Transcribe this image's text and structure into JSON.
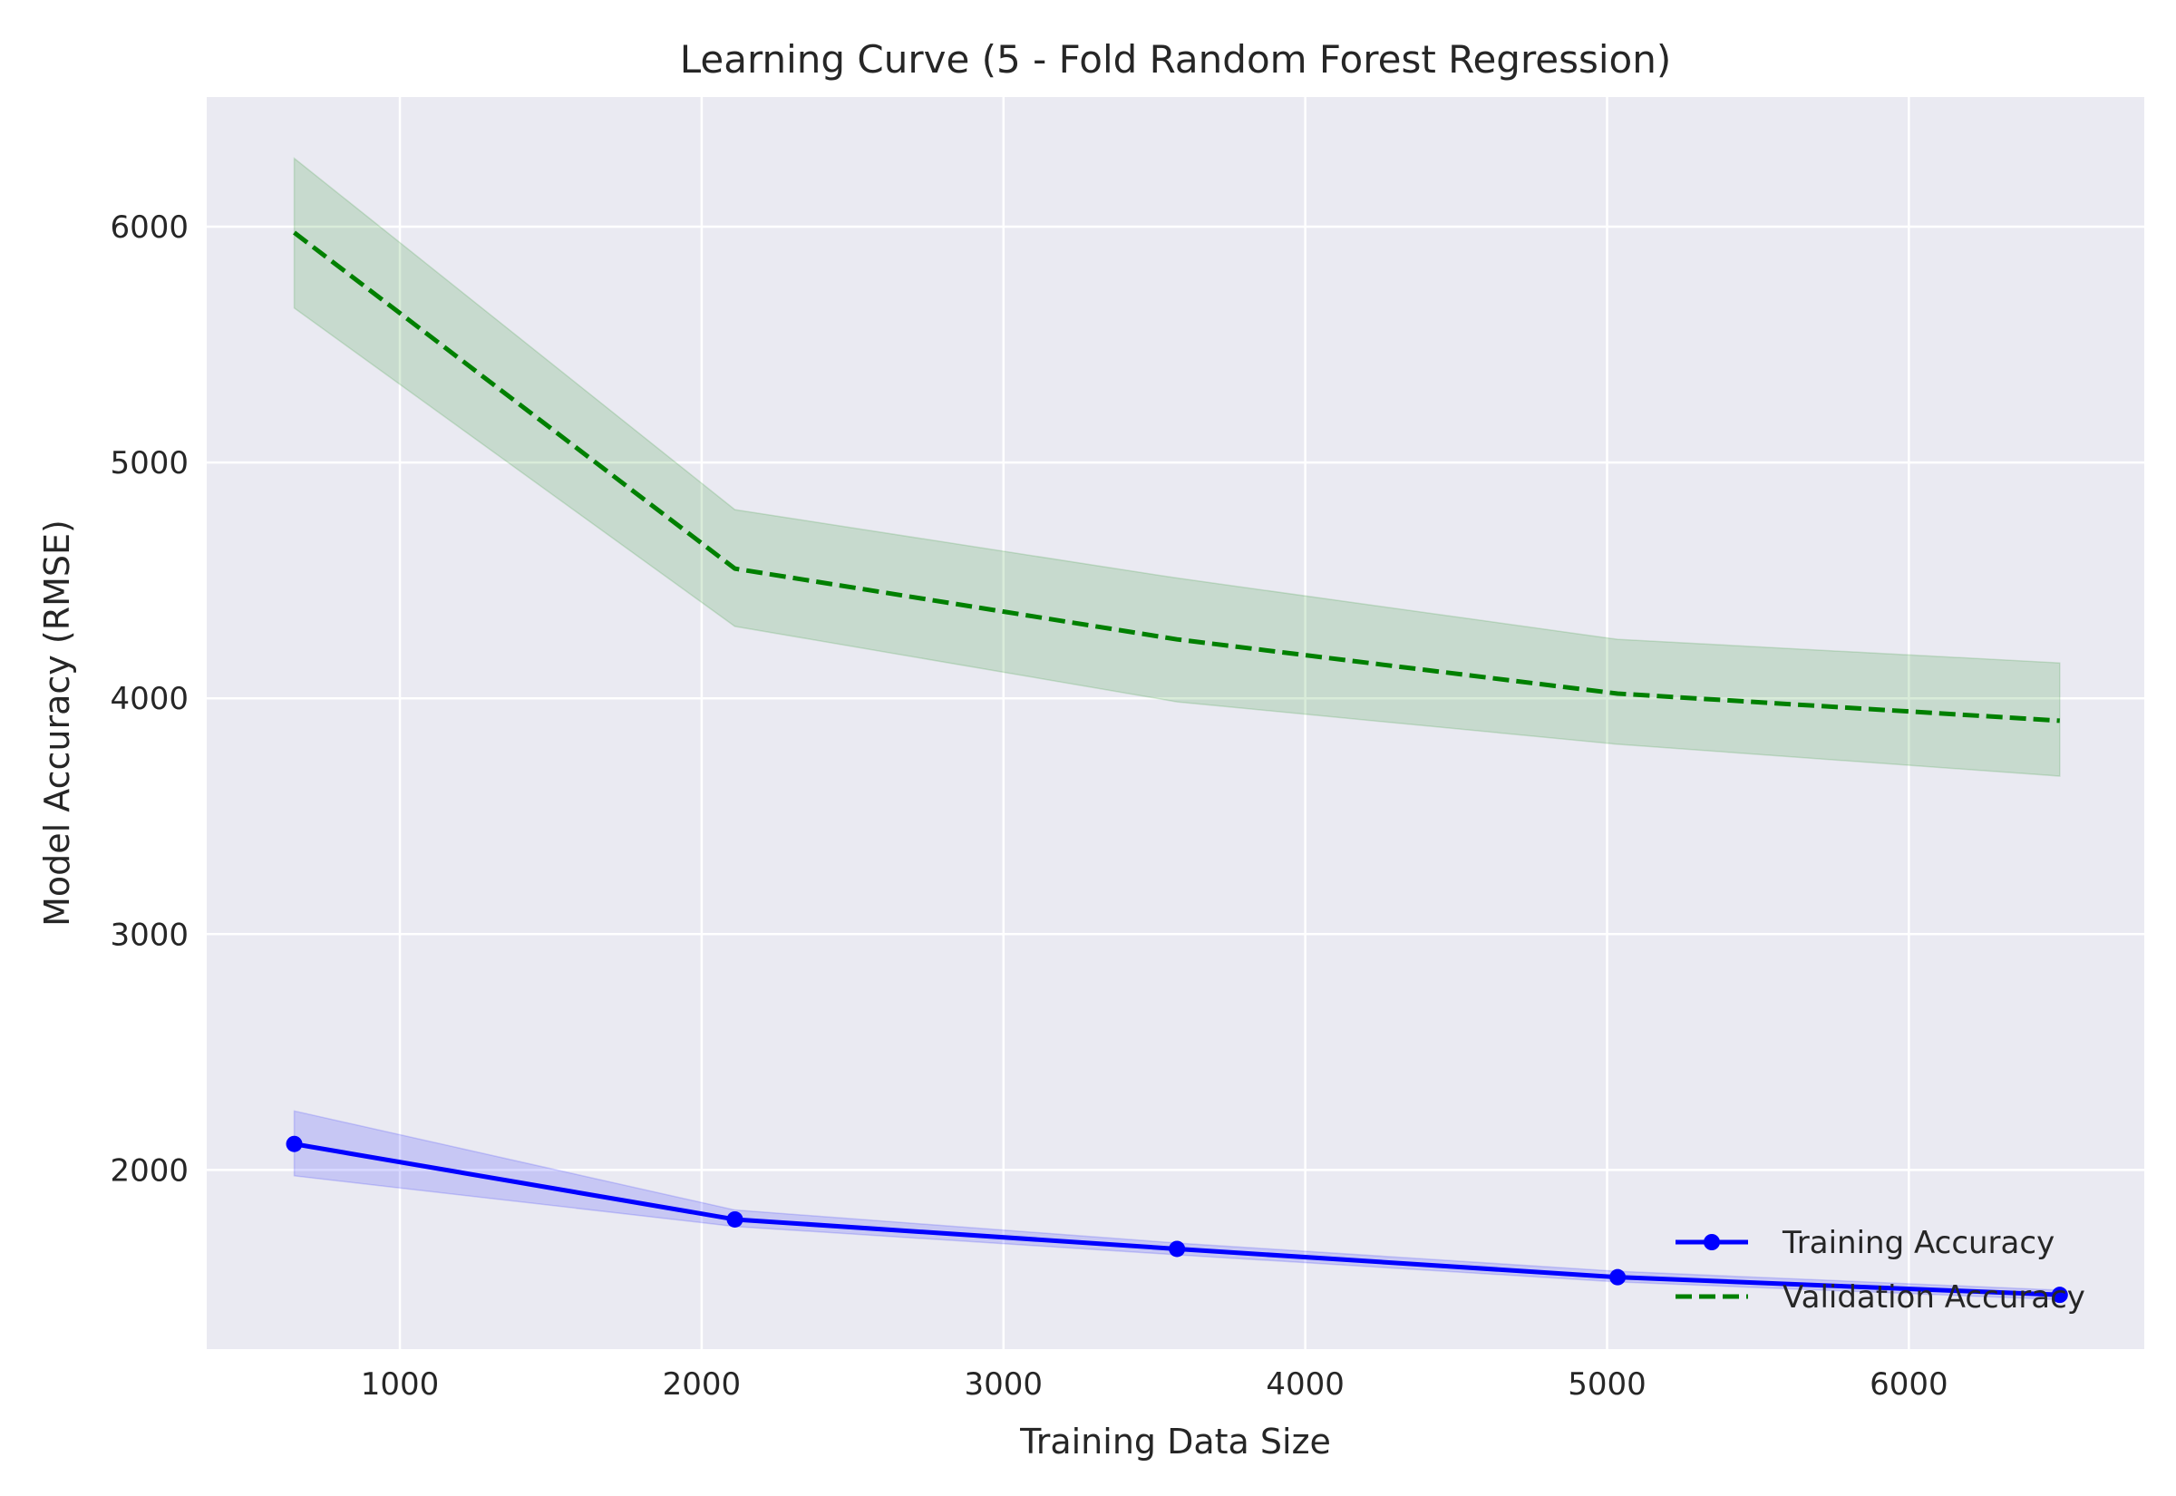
{
  "chart_data": {
    "type": "line",
    "title": "Learning Curve (5 - Fold Random Forest Regression)",
    "xlabel": "Training Data Size",
    "ylabel": "Model Accuracy (RMSE)",
    "xlim": [
      360,
      6780
    ],
    "ylim": [
      1240,
      6550
    ],
    "xticks": [
      1000,
      2000,
      3000,
      4000,
      5000,
      6000
    ],
    "yticks": [
      2000,
      3000,
      4000,
      5000,
      6000
    ],
    "xtick_labels": [
      "1000",
      "2000",
      "3000",
      "4000",
      "5000",
      "6000"
    ],
    "ytick_labels": [
      "2000",
      "3000",
      "4000",
      "5000",
      "6000"
    ],
    "grid": true,
    "legend_position": "lower-right",
    "x": [
      650,
      2110,
      3575,
      5035,
      6500
    ],
    "series": [
      {
        "name": "Training Accuracy",
        "color": "#0000ff",
        "style": "solid",
        "marker": "circle",
        "values": [
          2110,
          1790,
          1665,
          1545,
          1470
        ],
        "band_upper": [
          2250,
          1830,
          1690,
          1570,
          1490
        ],
        "band_lower": [
          1975,
          1760,
          1640,
          1525,
          1450
        ],
        "band_color": "#0000ff"
      },
      {
        "name": "Validation Accuracy",
        "color": "#008000",
        "style": "dashed",
        "marker": "none",
        "values": [
          5975,
          4550,
          4250,
          4020,
          3905
        ],
        "band_upper": [
          6290,
          4800,
          4510,
          4250,
          4150
        ],
        "band_lower": [
          5655,
          4305,
          3985,
          3805,
          3670
        ],
        "band_color": "#008000"
      }
    ]
  }
}
